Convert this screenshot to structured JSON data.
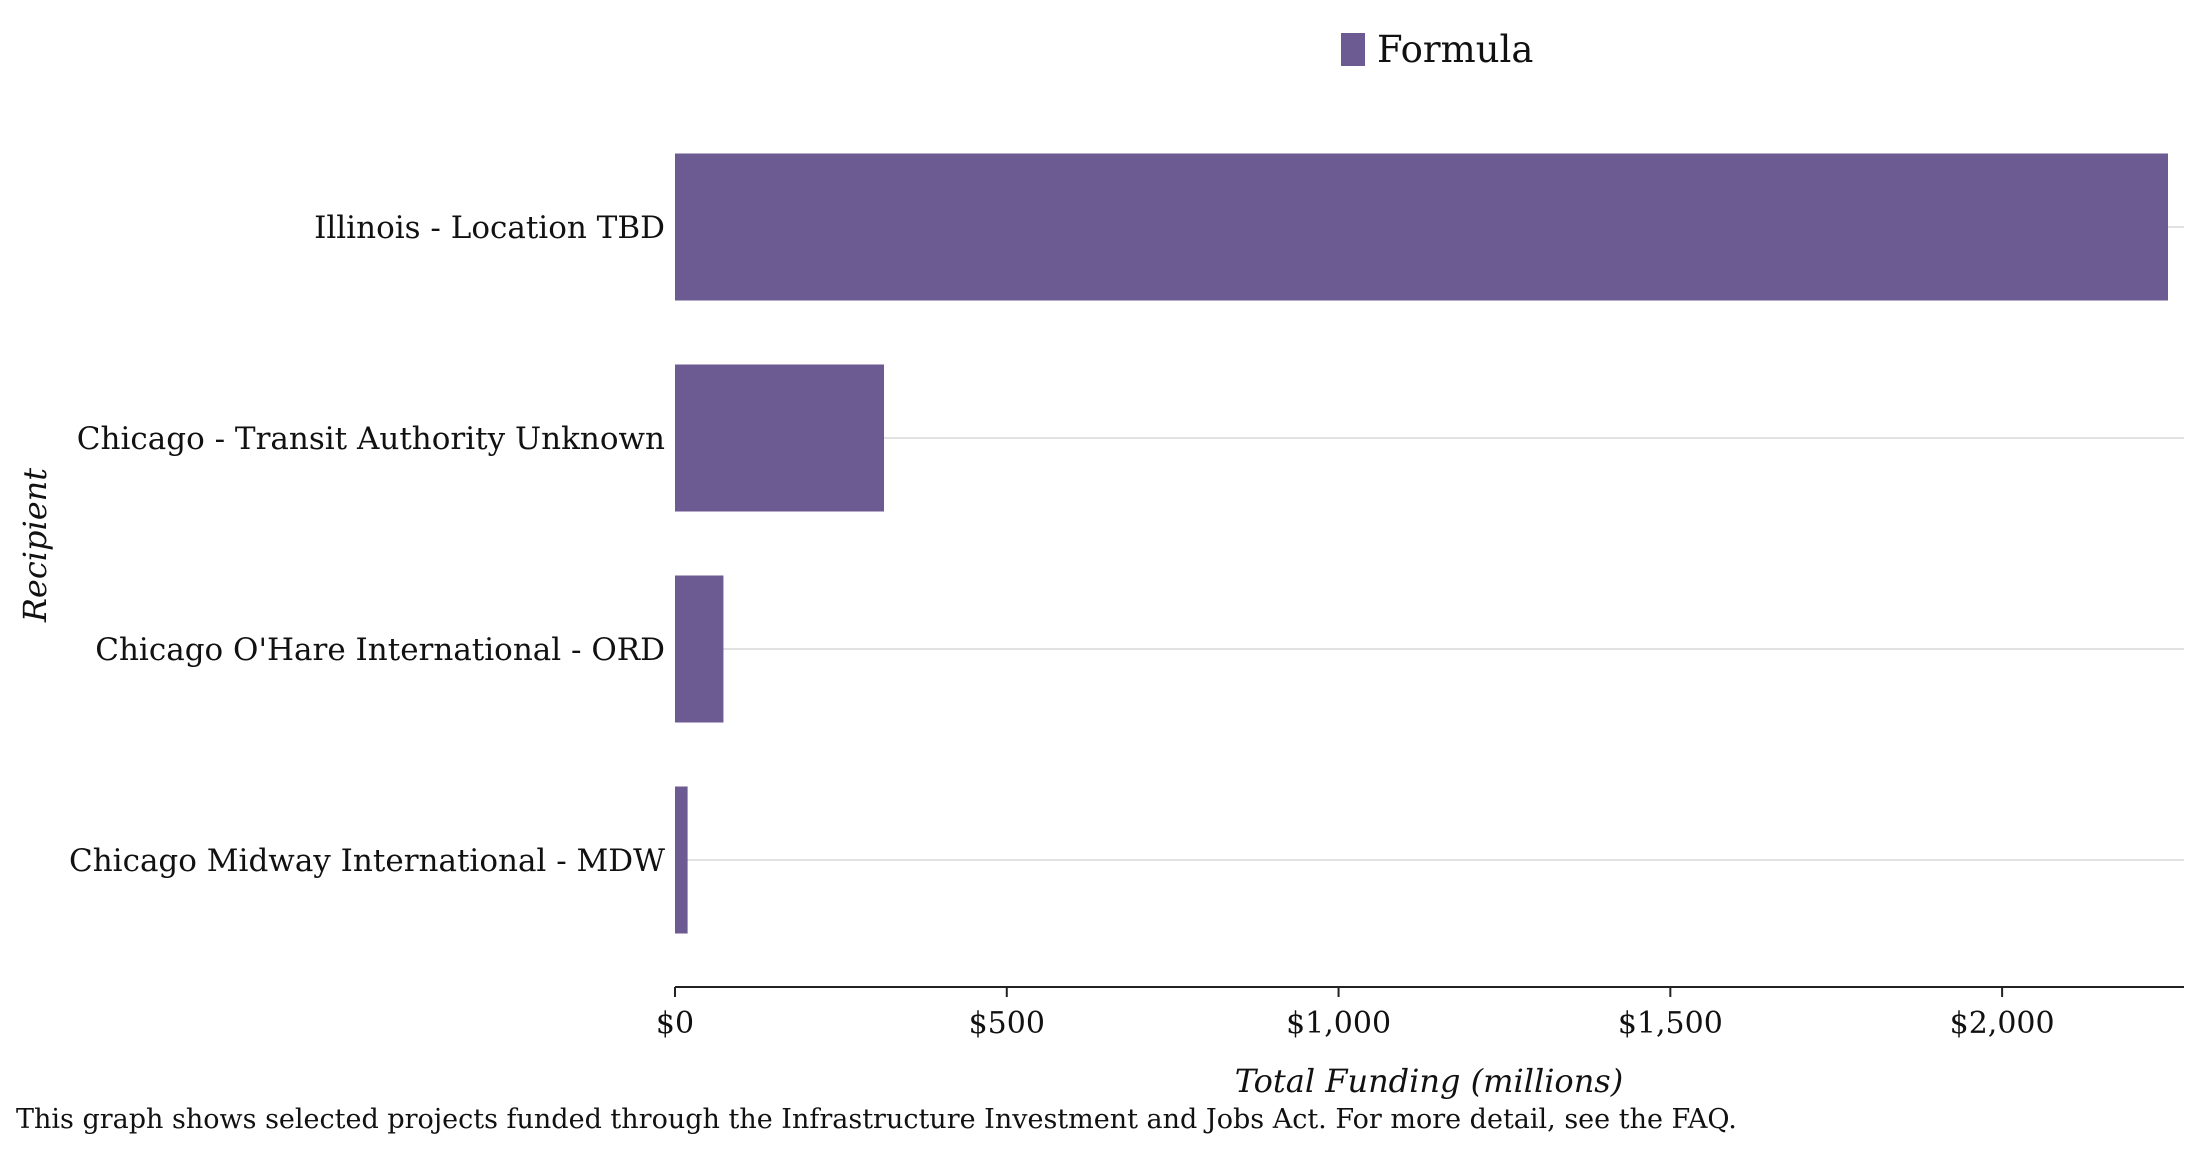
{
  "chart_data": {
    "type": "bar",
    "orientation": "horizontal",
    "categories": [
      "Illinois - Location TBD",
      "Chicago - Transit Authority Unknown",
      "Chicago O'Hare International - ORD",
      "Chicago Midway International - MDW"
    ],
    "series": [
      {
        "name": "Formula",
        "color": "#6c5a93",
        "values": [
          2250,
          315,
          73,
          19
        ]
      }
    ],
    "xlabel": "Total Funding (millions)",
    "ylabel": "Recipient",
    "xlim": [
      0,
      2275
    ],
    "x_ticks": [
      0,
      500,
      1000,
      1500,
      2000
    ],
    "x_tick_labels": [
      "$0",
      "$500",
      "$1,000",
      "$1,500",
      "$2,000"
    ],
    "grid": "horizontal",
    "legend_position": "top"
  },
  "caption": "This graph shows selected projects funded through the Infrastructure Investment and Jobs Act. For more detail, see the FAQ."
}
